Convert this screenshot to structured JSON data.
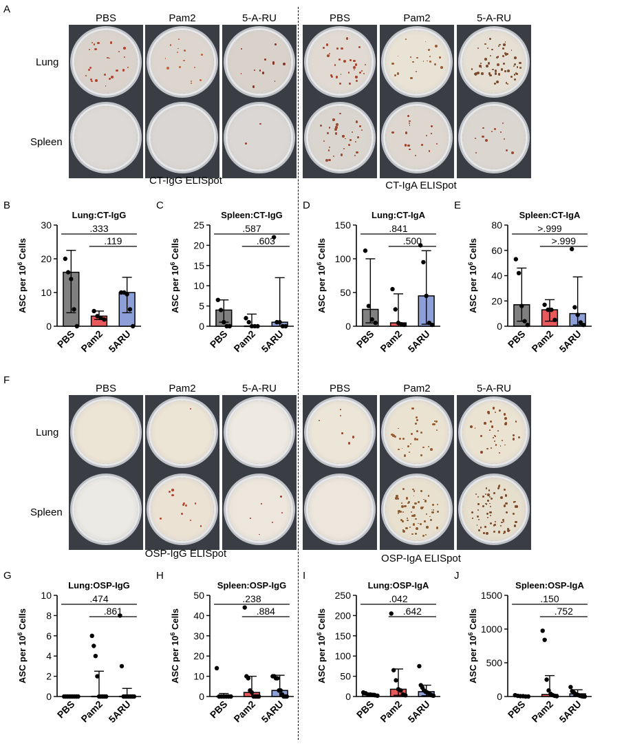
{
  "section_top": {
    "letter": "A",
    "columns": [
      "PBS",
      "Pam2",
      "5-A-RU",
      "PBS",
      "Pam2",
      "5-A-RU"
    ],
    "rows": [
      "Lung",
      "Spleen"
    ],
    "captions": [
      "CT-IgG ELISpot",
      "CT-IgA ELISpot"
    ]
  },
  "section_bottom": {
    "letter": "F",
    "columns": [
      "PBS",
      "Pam2",
      "5-A-RU",
      "PBS",
      "Pam2",
      "5-A-RU"
    ],
    "rows": [
      "Lung",
      "Spleen"
    ],
    "captions": [
      "OSP-IgG ELISpot",
      "OSP-IgA ELISpot"
    ]
  },
  "wells": {
    "top": [
      {
        "bg": "#d9d3cc",
        "spots": 24,
        "spot_color": "#b2452f"
      },
      {
        "bg": "#dcd6cf",
        "spots": 14,
        "spot_color": "#c0603c"
      },
      {
        "bg": "#d8d2cb",
        "spots": 12,
        "spot_color": "#8c2f24"
      },
      {
        "bg": "#e0dad3",
        "spots": 30,
        "spot_color": "#a8452c"
      },
      {
        "bg": "#e9e3d6",
        "spots": 20,
        "spot_color": "#9a5a30"
      },
      {
        "bg": "#e6e0d4",
        "spots": 60,
        "spot_color": "#7d4a2c"
      },
      {
        "bg": "#dcd9d6",
        "spots": 0,
        "spot_color": "#b2452f"
      },
      {
        "bg": "#d9d6d3",
        "spots": 0,
        "spot_color": "#b2452f"
      },
      {
        "bg": "#dad7d4",
        "spots": 2,
        "spot_color": "#9a3a2a"
      },
      {
        "bg": "#dbd5cf",
        "spots": 30,
        "spot_color": "#9a4a30"
      },
      {
        "bg": "#ddd7d0",
        "spots": 16,
        "spot_color": "#a0402a"
      },
      {
        "bg": "#dcd6d1",
        "spots": 12,
        "spot_color": "#9a4a30"
      }
    ],
    "bottom": [
      {
        "bg": "#ece4d4",
        "spots": 0,
        "spot_color": "#b2452f"
      },
      {
        "bg": "#ece4d4",
        "spots": 1,
        "spot_color": "#b2452f"
      },
      {
        "bg": "#eeeae2",
        "spots": 0,
        "spot_color": "#b2452f"
      },
      {
        "bg": "#ece6d8",
        "spots": 6,
        "spot_color": "#9a4a30"
      },
      {
        "bg": "#ebe3d2",
        "spots": 30,
        "spot_color": "#9a5a30"
      },
      {
        "bg": "#ebe3d2",
        "spots": 34,
        "spot_color": "#8c4a2a"
      },
      {
        "bg": "#eceae4",
        "spots": 0,
        "spot_color": "#b2452f"
      },
      {
        "bg": "#ebe2d4",
        "spots": 12,
        "spot_color": "#b8452c"
      },
      {
        "bg": "#ece6dc",
        "spots": 6,
        "spot_color": "#a8382a"
      },
      {
        "bg": "#ece6dc",
        "spots": 0,
        "spot_color": "#b2452f"
      },
      {
        "bg": "#e9e1cf",
        "spots": 60,
        "spot_color": "#8c5a30"
      },
      {
        "bg": "#e7dfcd",
        "spots": 64,
        "spot_color": "#7d4a2a"
      }
    ]
  },
  "colors": {
    "PBS": "#808080",
    "Pam2": "#e8595b",
    "5ARU": "#8c9fd6"
  },
  "chart_data": [
    {
      "letter": "B",
      "type": "bar",
      "title": "Lung:CT-IgG",
      "ylabel": "ASC per 10^6 Cells",
      "categories": [
        "PBS",
        "Pam2",
        "5ARU"
      ],
      "ylim": [
        0,
        30
      ],
      "yticks": [
        0,
        10,
        20,
        30
      ],
      "values": [
        16,
        3,
        10
      ],
      "err_low": [
        4,
        2,
        4
      ],
      "err_high": [
        22.5,
        4.5,
        14.5
      ],
      "points": [
        [
          20,
          16,
          14,
          5,
          0
        ],
        [
          4.5,
          3,
          2.5,
          2
        ],
        [
          10,
          10,
          9.5,
          5,
          0
        ]
      ],
      "pvalues": [
        {
          "text": ".333",
          "from": 0,
          "to": 2
        },
        {
          "text": ".119",
          "from": 1,
          "to": 2
        }
      ]
    },
    {
      "letter": "C",
      "type": "bar",
      "title": "Spleen:CT-IgG",
      "ylabel": "ASC per 10^6 Cells",
      "categories": [
        "PBS",
        "Pam2",
        "5ARU"
      ],
      "ylim": [
        0,
        25
      ],
      "yticks": [
        0,
        5,
        10,
        15,
        20,
        25
      ],
      "values": [
        4,
        0,
        1
      ],
      "err_low": [
        1,
        0,
        0
      ],
      "err_high": [
        6.5,
        3,
        12
      ],
      "points": [
        [
          6.5,
          4,
          1,
          0,
          0
        ],
        [
          2,
          1,
          0,
          0,
          0
        ],
        [
          22,
          1,
          1,
          0,
          0
        ]
      ],
      "pvalues": [
        {
          "text": ".587",
          "from": 0,
          "to": 2
        },
        {
          "text": ".603",
          "from": 1,
          "to": 2
        }
      ]
    },
    {
      "letter": "D",
      "type": "bar",
      "title": "Lung:CT-IgA",
      "ylabel": "ASC per 10^6 Cells",
      "categories": [
        "PBS",
        "Pam2",
        "5ARU"
      ],
      "ylim": [
        0,
        150
      ],
      "yticks": [
        0,
        50,
        100,
        150
      ],
      "values": [
        25,
        5,
        45
      ],
      "err_low": [
        5,
        0,
        3
      ],
      "err_high": [
        100,
        48,
        112
      ],
      "points": [
        [
          112,
          30,
          10,
          5
        ],
        [
          55,
          25,
          5,
          3,
          2
        ],
        [
          120,
          95,
          45,
          5,
          2
        ]
      ],
      "pvalues": [
        {
          "text": ".841",
          "from": 0,
          "to": 2
        },
        {
          "text": ".500",
          "from": 1,
          "to": 2
        }
      ]
    },
    {
      "letter": "E",
      "type": "bar",
      "title": "Spleen:CT-IgA",
      "ylabel": "ASC per 10^6 Cells",
      "categories": [
        "PBS",
        "Pam2",
        "5ARU"
      ],
      "ylim": [
        0,
        80
      ],
      "yticks": [
        0,
        20,
        40,
        60,
        80
      ],
      "values": [
        17,
        13,
        10
      ],
      "err_low": [
        4,
        4,
        1
      ],
      "err_high": [
        46,
        21,
        39
      ],
      "points": [
        [
          53,
          42,
          16,
          4,
          1
        ],
        [
          17,
          13,
          13,
          5
        ],
        [
          61,
          15,
          9,
          3,
          1
        ]
      ],
      "pvalues": [
        {
          "text": ">.999",
          "from": 0,
          "to": 2
        },
        {
          "text": ">.999",
          "from": 1,
          "to": 2
        }
      ]
    },
    {
      "letter": "G",
      "type": "bar",
      "title": "Lung:OSP-IgG",
      "ylabel": "ASC per 10^6 Cells",
      "categories": [
        "PBS",
        "Pam2",
        "5ARU"
      ],
      "ylim": [
        0,
        10
      ],
      "yticks": [
        0,
        2,
        4,
        6,
        8,
        10
      ],
      "values": [
        0,
        0,
        0
      ],
      "err_low": [
        0,
        0,
        0
      ],
      "err_high": [
        0,
        2.5,
        0.8
      ],
      "points": [
        [
          0,
          0,
          0,
          0,
          0,
          0,
          0,
          0,
          0
        ],
        [
          6,
          5,
          4,
          2,
          0,
          0,
          0,
          0,
          0
        ],
        [
          8,
          3,
          0,
          0,
          0,
          0,
          0,
          0,
          0
        ]
      ],
      "pvalues": [
        {
          "text": ".474",
          "from": 0,
          "to": 2
        },
        {
          "text": ".861",
          "from": 1,
          "to": 2
        }
      ]
    },
    {
      "letter": "H",
      "type": "bar",
      "title": "Spleen:OSP-IgG",
      "ylabel": "ASC per 10^6 Cells",
      "categories": [
        "PBS",
        "Pam2",
        "5ARU"
      ],
      "ylim": [
        0,
        50
      ],
      "yticks": [
        0,
        10,
        20,
        30,
        40,
        50
      ],
      "values": [
        0,
        2,
        3
      ],
      "err_low": [
        0,
        0,
        0
      ],
      "err_high": [
        1.5,
        10,
        10.5
      ],
      "points": [
        [
          14,
          0,
          0,
          0,
          0,
          0,
          0
        ],
        [
          44,
          10,
          9,
          3,
          2,
          0,
          0,
          0,
          0
        ],
        [
          10,
          10,
          9,
          9,
          3,
          3,
          1,
          0,
          0,
          0
        ]
      ],
      "pvalues": [
        {
          "text": ".238",
          "from": 0,
          "to": 2
        },
        {
          "text": ".884",
          "from": 1,
          "to": 2
        }
      ]
    },
    {
      "letter": "I",
      "type": "bar",
      "title": "Lung:OSP-IgA",
      "ylabel": "ASC per 10^6 Cells",
      "categories": [
        "PBS",
        "Pam2",
        "5ARU"
      ],
      "ylim": [
        0,
        250
      ],
      "yticks": [
        0,
        50,
        100,
        150,
        200,
        250
      ],
      "values": [
        5,
        18,
        12
      ],
      "err_low": [
        0,
        3,
        2
      ],
      "err_high": [
        8,
        68,
        28
      ],
      "points": [
        [
          10,
          8,
          5,
          5,
          4,
          3,
          2
        ],
        [
          205,
          65,
          40,
          18,
          15,
          5,
          3
        ],
        [
          75,
          28,
          22,
          15,
          12,
          10,
          8,
          5,
          3,
          2
        ]
      ],
      "pvalues": [
        {
          "text": ".042",
          "from": 0,
          "to": 2
        },
        {
          "text": ".642",
          "from": 1,
          "to": 2
        }
      ]
    },
    {
      "letter": "J",
      "type": "bar",
      "title": "Spleen:OSP-IgA",
      "ylabel": "ASC per 10^6 Cells",
      "categories": [
        "PBS",
        "Pam2",
        "5ARU"
      ],
      "ylim": [
        0,
        1500
      ],
      "yticks": [
        0,
        500,
        1000,
        1500
      ],
      "values": [
        0,
        30,
        40
      ],
      "err_low": [
        0,
        0,
        10
      ],
      "err_high": [
        20,
        310,
        100
      ],
      "points": [
        [
          20,
          10,
          5,
          5,
          0,
          0
        ],
        [
          975,
          840,
          250,
          90,
          40,
          20,
          10,
          5
        ],
        [
          140,
          80,
          60,
          40,
          30,
          20,
          10,
          5,
          0,
          0
        ]
      ],
      "pvalues": [
        {
          "text": ".150",
          "from": 0,
          "to": 2
        },
        {
          "text": ".752",
          "from": 1,
          "to": 2
        }
      ]
    }
  ]
}
